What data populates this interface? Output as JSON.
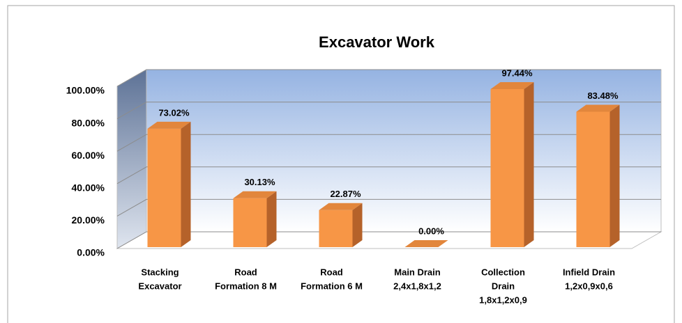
{
  "chart_data": {
    "type": "bar3d",
    "title": "Excavator Work",
    "categories": [
      [
        "Stacking",
        "Excavator"
      ],
      [
        "Road",
        "Formation 8 M"
      ],
      [
        "Road",
        "Formation 6 M"
      ],
      [
        "Main Drain",
        "2,4x1,8x1,2"
      ],
      [
        "Collection",
        "Drain",
        "1,8x1,2x0,9"
      ],
      [
        "Infield Drain",
        "1,2x0,9x0,6"
      ]
    ],
    "values": [
      73.02,
      30.13,
      22.87,
      0,
      97.44,
      83.48
    ],
    "value_labels": [
      "73.02%",
      "30.13%",
      "22.87%",
      "0.00%",
      "97.44%",
      "83.48%"
    ],
    "color": "#f79646",
    "ylim": [
      0,
      100
    ],
    "yticks": [
      {
        "value": 0,
        "label": "0.00%"
      },
      {
        "value": 20,
        "label": "20.00%"
      },
      {
        "value": 40,
        "label": "40.00%"
      },
      {
        "value": 60,
        "label": "60.00%"
      },
      {
        "value": 80,
        "label": "80.00%"
      },
      {
        "value": 100,
        "label": "100.00%"
      }
    ],
    "grid": true
  }
}
